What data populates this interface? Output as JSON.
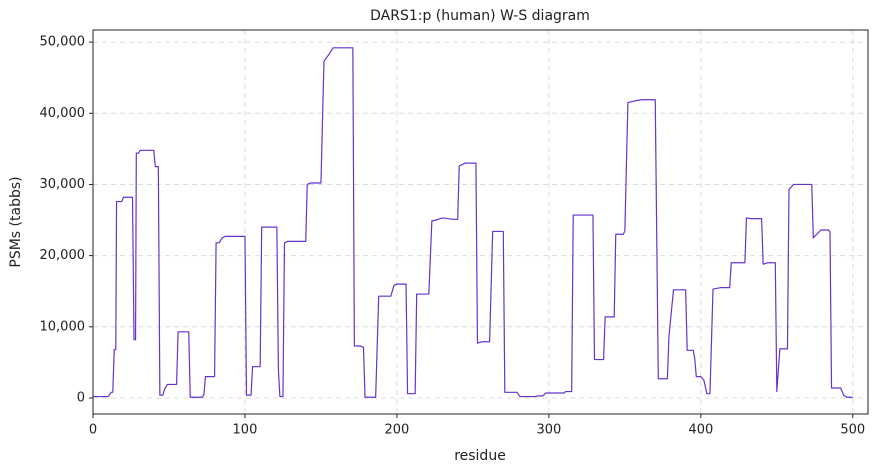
{
  "chart_data": {
    "type": "line",
    "title": "DARS1:p (human) W-S diagram",
    "x_label": "residue",
    "y_label": "PSMs (tabbs)",
    "xlim": [
      0,
      510
    ],
    "xticks": [
      0,
      100,
      200,
      300,
      400,
      500
    ],
    "ylim": [
      -2250,
      51700
    ],
    "yticks": [
      0,
      {
        "value": 10000,
        "label": "10,000"
      },
      {
        "value": 20000,
        "label": "20,000"
      },
      {
        "value": 30000,
        "label": "30,000"
      },
      {
        "value": 40000,
        "label": "40,000"
      },
      {
        "value": 50000,
        "label": "50,000"
      }
    ],
    "grid": true,
    "color": "#6633cc",
    "x": [
      0,
      10,
      12,
      13,
      14,
      15,
      15.5,
      19,
      20,
      26,
      27,
      28,
      28.5,
      30,
      31,
      40,
      41,
      43,
      44,
      46,
      47,
      49,
      55,
      56,
      63,
      64,
      72,
      73,
      74,
      80,
      81,
      83,
      85,
      87,
      100,
      101,
      104,
      105,
      110,
      111,
      121,
      122,
      123,
      125,
      126,
      128,
      140,
      141,
      143,
      150,
      152,
      155,
      158,
      171,
      172,
      176,
      178,
      179,
      186,
      188,
      196,
      198,
      200,
      206,
      207,
      212,
      213,
      221,
      223,
      224,
      230,
      237,
      240,
      241,
      245,
      252,
      253,
      256,
      261,
      263,
      270,
      271,
      279,
      281,
      291,
      293,
      296,
      298,
      310,
      311,
      315,
      316,
      329,
      330,
      336,
      337,
      343,
      344,
      349,
      350,
      352,
      358,
      361,
      370,
      372,
      378,
      379,
      382,
      390,
      391,
      395,
      396,
      397,
      400,
      402,
      404,
      406,
      408,
      413,
      419,
      420,
      429,
      430,
      433,
      440,
      441,
      444,
      449,
      450,
      452,
      457,
      458,
      461,
      473,
      474,
      479,
      484,
      485,
      486,
      492,
      494,
      496,
      500
    ],
    "values": [
      200,
      200,
      800,
      800,
      6800,
      6800,
      27600,
      27600,
      28200,
      28200,
      8200,
      8200,
      34400,
      34400,
      34800,
      34800,
      32500,
      32500,
      400,
      400,
      1200,
      1900,
      1900,
      9300,
      9300,
      100,
      100,
      500,
      3000,
      3000,
      21800,
      21800,
      22500,
      22700,
      22700,
      400,
      400,
      4400,
      4400,
      24000,
      24000,
      4000,
      200,
      200,
      21800,
      22000,
      22000,
      30000,
      30200,
      30200,
      47300,
      48200,
      49200,
      49200,
      7300,
      7300,
      7100,
      100,
      100,
      14300,
      14300,
      15800,
      16000,
      16000,
      600,
      600,
      14600,
      14600,
      24900,
      24900,
      25300,
      25100,
      25100,
      32600,
      33000,
      33000,
      7700,
      7900,
      7900,
      23400,
      23400,
      800,
      800,
      200,
      200,
      300,
      300,
      700,
      700,
      900,
      900,
      25700,
      25700,
      5400,
      5400,
      11400,
      11400,
      23000,
      23000,
      23500,
      41500,
      41800,
      41900,
      41900,
      2700,
      2700,
      8600,
      15200,
      15200,
      6700,
      6700,
      5500,
      3000,
      3000,
      2500,
      600,
      600,
      15300,
      15500,
      15500,
      19000,
      19000,
      25300,
      25200,
      25200,
      18800,
      19000,
      19000,
      900,
      6900,
      6900,
      29300,
      30000,
      30000,
      22500,
      23600,
      23600,
      23300,
      1400,
      1400,
      400,
      100,
      100
    ]
  }
}
